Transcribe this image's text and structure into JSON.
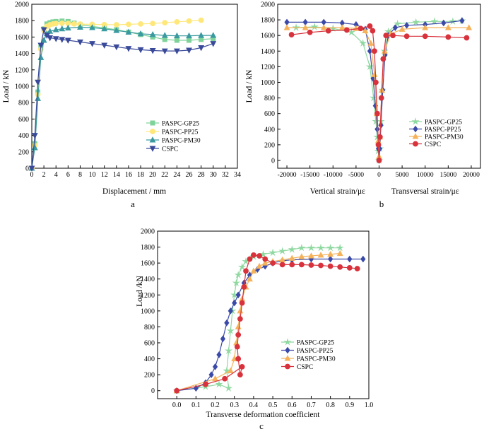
{
  "colors": {
    "GP25": "#7fd39a",
    "PP25": "#ffe77a",
    "PM30": "#3a9aa0",
    "CSPC": "#3a4a9a",
    "b_GP25": "#8fd8a0",
    "b_PP25": "#3b4aa8",
    "b_PM30": "#f5b25a",
    "b_CSPC": "#d8323c"
  },
  "chart_data": [
    {
      "panel": "a",
      "type": "line",
      "xlabel": "Displacement / mm",
      "ylabel": "Load / kN",
      "xlim": [
        0,
        34
      ],
      "ylim": [
        0,
        2000
      ],
      "xticks": [
        "0",
        "2",
        "4",
        "6",
        "8",
        "10",
        "12",
        "14",
        "16",
        "18",
        "20",
        "22",
        "24",
        "26",
        "28",
        "30",
        "32",
        "34"
      ],
      "yticks": [
        "0",
        "200",
        "400",
        "600",
        "800",
        "1000",
        "1200",
        "1400",
        "1600",
        "1800",
        "2000"
      ],
      "legend_position": "right",
      "series": [
        {
          "name": "PASPC-GP25",
          "marker": "square",
          "color": "#7fd39a",
          "x": [
            0,
            0.5,
            1,
            1.5,
            2,
            2.5,
            3,
            3.5,
            4,
            5,
            6,
            7,
            8,
            10,
            12,
            14,
            16,
            18,
            20,
            22,
            24,
            26,
            28,
            30
          ],
          "y": [
            0,
            300,
            930,
            1480,
            1700,
            1760,
            1775,
            1785,
            1790,
            1795,
            1790,
            1770,
            1750,
            1730,
            1710,
            1690,
            1660,
            1630,
            1600,
            1570,
            1560,
            1560,
            1570,
            1580
          ]
        },
        {
          "name": "PASPC-PP25",
          "marker": "circle",
          "color": "#ffe77a",
          "x": [
            0,
            0.5,
            1,
            1.5,
            2,
            2.5,
            3,
            3.5,
            4,
            5,
            6,
            7,
            8,
            10,
            12,
            14,
            16,
            18,
            20,
            22,
            24,
            26,
            28
          ],
          "y": [
            0,
            280,
            900,
            1450,
            1680,
            1730,
            1750,
            1760,
            1765,
            1768,
            1765,
            1760,
            1758,
            1755,
            1752,
            1750,
            1755,
            1760,
            1765,
            1775,
            1785,
            1795,
            1805
          ]
        },
        {
          "name": "PASPC-PM30",
          "marker": "triangle",
          "color": "#3a9aa0",
          "x": [
            0,
            0.5,
            1,
            1.5,
            2,
            2.5,
            3,
            4,
            5,
            6,
            8,
            10,
            12,
            14,
            16,
            18,
            20,
            22,
            24,
            26,
            28,
            30
          ],
          "y": [
            0,
            250,
            850,
            1350,
            1560,
            1640,
            1670,
            1690,
            1700,
            1710,
            1720,
            1715,
            1700,
            1680,
            1660,
            1640,
            1630,
            1620,
            1615,
            1615,
            1620,
            1620
          ]
        },
        {
          "name": "CSPC",
          "marker": "down-triangle",
          "color": "#3a4a9a",
          "x": [
            0,
            0.5,
            1,
            1.5,
            2,
            2.5,
            3,
            4,
            5,
            6,
            8,
            10,
            12,
            14,
            16,
            18,
            20,
            22,
            24,
            26,
            28,
            30
          ],
          "y": [
            0,
            400,
            1050,
            1500,
            1690,
            1620,
            1590,
            1580,
            1570,
            1560,
            1540,
            1520,
            1500,
            1480,
            1460,
            1445,
            1435,
            1430,
            1430,
            1440,
            1470,
            1520
          ]
        }
      ],
      "panel_label": "a"
    },
    {
      "panel": "b",
      "type": "line",
      "xlabel_left": "Vertical strain/με",
      "xlabel_right": "Transversal strain/με",
      "ylabel": "Load / kN",
      "xlim": [
        -22000,
        22000
      ],
      "ylim": [
        -100,
        2000
      ],
      "xticks": [
        "-20000",
        "-15000",
        "-10000",
        "-5000",
        "0",
        "5000",
        "10000",
        "15000",
        "20000"
      ],
      "yticks": [
        "0",
        "200",
        "400",
        "600",
        "800",
        "1000",
        "1200",
        "1400",
        "1600",
        "1800",
        "2000"
      ],
      "legend_position": "right",
      "series": [
        {
          "name": "PASPC-GP25",
          "marker": "star",
          "color": "#8fd8a0",
          "x": [
            -18000,
            -14000,
            -10000,
            -6000,
            -3500,
            -2000,
            -1200,
            -700,
            -400,
            -200,
            0,
            200,
            400,
            700,
            1200,
            2000,
            4000,
            8000,
            12000,
            16000,
            18000
          ],
          "y": [
            1700,
            1710,
            1690,
            1640,
            1500,
            1200,
            800,
            500,
            300,
            120,
            0,
            150,
            500,
            900,
            1400,
            1650,
            1750,
            1770,
            1780,
            1780,
            1790
          ]
        },
        {
          "name": "PASPC-PP25",
          "marker": "diamond",
          "color": "#3b4aa8",
          "x": [
            -20000,
            -16000,
            -12000,
            -8000,
            -5000,
            -3000,
            -2000,
            -1300,
            -800,
            -400,
            -150,
            0,
            150,
            400,
            800,
            1300,
            2000,
            3500,
            6000,
            10000,
            14000,
            18000
          ],
          "y": [
            1770,
            1770,
            1770,
            1760,
            1740,
            1680,
            1400,
            1050,
            700,
            400,
            150,
            0,
            150,
            450,
            900,
            1350,
            1600,
            1700,
            1730,
            1740,
            1760,
            1790
          ]
        },
        {
          "name": "PASPC-PM30",
          "marker": "triangle",
          "color": "#f5b25a",
          "x": [
            -20000,
            -16000,
            -12000,
            -8000,
            -5000,
            -3000,
            -1800,
            -1000,
            -500,
            -200,
            0,
            200,
            600,
            1200,
            2500,
            5000,
            10000,
            15000,
            19500
          ],
          "y": [
            1700,
            1700,
            1700,
            1700,
            1690,
            1660,
            1500,
            1100,
            600,
            250,
            50,
            300,
            900,
            1400,
            1620,
            1680,
            1700,
            1700,
            1700
          ]
        },
        {
          "name": "CSPC",
          "marker": "circle",
          "color": "#d8323c",
          "x": [
            -19000,
            -15000,
            -11000,
            -7000,
            -4000,
            -2000,
            -1400,
            -1000,
            -700,
            -400,
            -150,
            0,
            200,
            500,
            900,
            1500,
            3000,
            6000,
            10000,
            15000,
            19000
          ],
          "y": [
            1610,
            1640,
            1660,
            1670,
            1690,
            1720,
            1660,
            1400,
            1000,
            600,
            200,
            0,
            300,
            800,
            1300,
            1600,
            1600,
            1590,
            1590,
            1580,
            1570
          ]
        }
      ],
      "panel_label": "b"
    },
    {
      "panel": "c",
      "type": "line",
      "xlabel": "Transverse deformation coefficient",
      "ylabel": "Load /kN",
      "xlim": [
        -0.1,
        1.0
      ],
      "ylim": [
        -100,
        2000
      ],
      "xticks": [
        "0.0",
        "0.1",
        "0.2",
        "0.3",
        "0.4",
        "0.5",
        "0.6",
        "0.7",
        "0.8",
        "0.9",
        "1.0"
      ],
      "yticks": [
        "0",
        "200",
        "400",
        "600",
        "800",
        "1000",
        "1200",
        "1400",
        "1600",
        "1800",
        "2000"
      ],
      "legend_position": "right",
      "series": [
        {
          "name": "PASPC-GP25",
          "marker": "star",
          "color": "#8fd8a0",
          "x": [
            0,
            0.15,
            0.22,
            0.27,
            0.26,
            0.27,
            0.28,
            0.29,
            0.3,
            0.31,
            0.32,
            0.34,
            0.36,
            0.4,
            0.45,
            0.5,
            0.55,
            0.6,
            0.65,
            0.7,
            0.75,
            0.8,
            0.85
          ],
          "y": [
            0,
            50,
            80,
            30,
            250,
            500,
            750,
            1000,
            1200,
            1350,
            1450,
            1550,
            1620,
            1680,
            1710,
            1730,
            1750,
            1770,
            1790,
            1790,
            1790,
            1790,
            1790
          ]
        },
        {
          "name": "PASPC-PP25",
          "marker": "diamond",
          "color": "#3b4aa8",
          "x": [
            0,
            0.1,
            0.15,
            0.18,
            0.2,
            0.22,
            0.24,
            0.26,
            0.28,
            0.3,
            0.32,
            0.35,
            0.38,
            0.42,
            0.46,
            0.5,
            0.55,
            0.6,
            0.7,
            0.8,
            0.9,
            0.97
          ],
          "y": [
            0,
            30,
            100,
            200,
            300,
            450,
            650,
            850,
            1000,
            1100,
            1200,
            1350,
            1450,
            1520,
            1560,
            1600,
            1630,
            1640,
            1650,
            1650,
            1650,
            1650
          ]
        },
        {
          "name": "PASPC-PM30",
          "marker": "triangle",
          "color": "#f5b25a",
          "x": [
            0,
            0.2,
            0.28,
            0.3,
            0.31,
            0.32,
            0.33,
            0.34,
            0.36,
            0.38,
            0.4,
            0.43,
            0.46,
            0.5,
            0.55,
            0.6,
            0.65,
            0.7,
            0.75,
            0.8,
            0.85
          ],
          "y": [
            0,
            150,
            250,
            400,
            600,
            800,
            1000,
            1150,
            1300,
            1400,
            1500,
            1560,
            1600,
            1620,
            1640,
            1660,
            1680,
            1690,
            1700,
            1710,
            1720
          ]
        },
        {
          "name": "CSPC",
          "marker": "circle",
          "color": "#d8323c",
          "x": [
            0,
            0.15,
            0.25,
            0.34,
            0.33,
            0.32,
            0.315,
            0.32,
            0.33,
            0.34,
            0.35,
            0.36,
            0.38,
            0.4,
            0.43,
            0.46,
            0.5,
            0.55,
            0.6,
            0.65,
            0.7,
            0.75,
            0.8,
            0.85,
            0.9,
            0.94
          ],
          "y": [
            0,
            80,
            150,
            300,
            200,
            400,
            550,
            700,
            900,
            1100,
            1300,
            1500,
            1650,
            1700,
            1690,
            1650,
            1600,
            1580,
            1580,
            1580,
            1575,
            1570,
            1560,
            1550,
            1540,
            1530
          ]
        }
      ],
      "panel_label": "c"
    }
  ]
}
